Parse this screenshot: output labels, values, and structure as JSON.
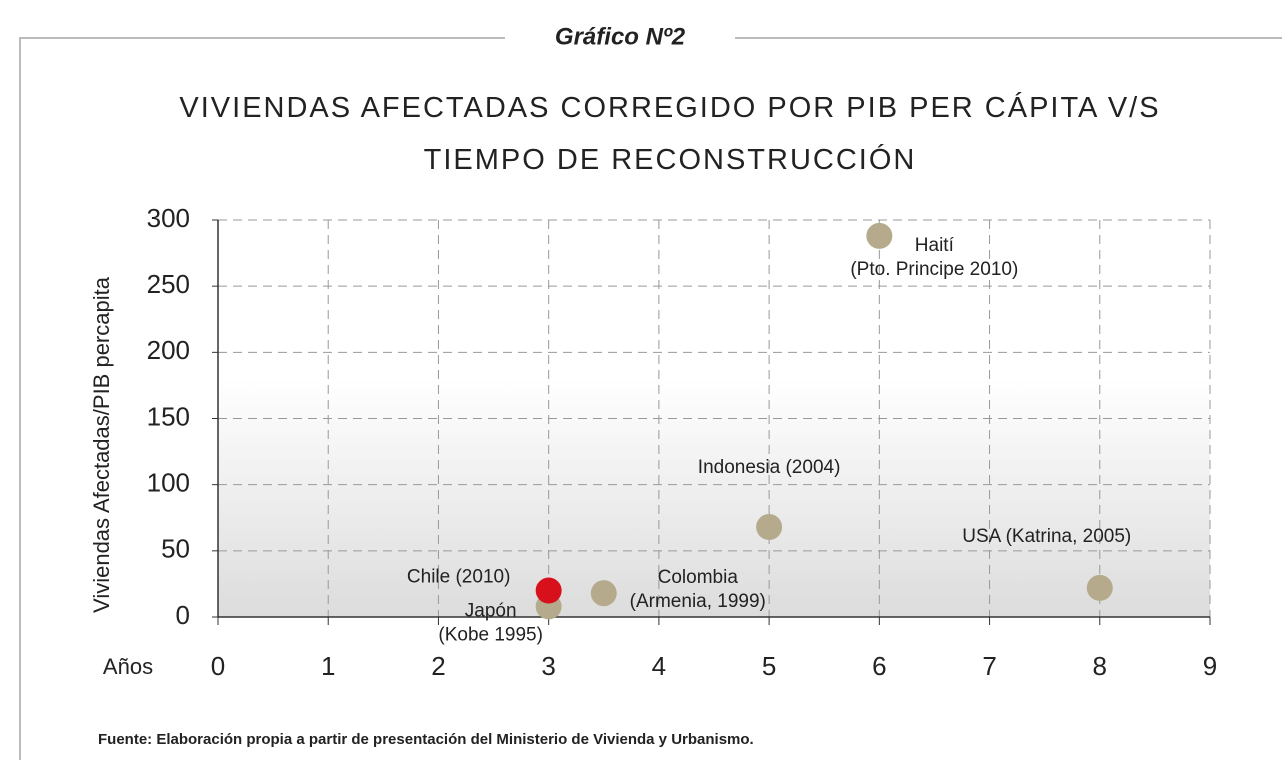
{
  "header": "Gráfico Nº2",
  "chart_data": {
    "type": "scatter",
    "title": "VIVIENDAS AFECTADAS CORREGIDO POR PIB PER CÁPITA V/S TIEMPO DE RECONSTRUCCIÓN",
    "x_label": "Años",
    "y_label": "Viviendas Afectadas/PIB percapita",
    "x": [
      3,
      3,
      3.5,
      5,
      6,
      8
    ],
    "y": [
      8,
      20,
      18,
      68,
      288,
      22
    ],
    "labels": [
      [
        "Japón",
        "(Kobe 1995)"
      ],
      [
        "Chile (2010)"
      ],
      [
        "Colombia",
        "(Armenia, 1999)"
      ],
      [
        "Indonesia (2004)"
      ],
      [
        "Haití",
        "(Pto. Principe 2010)"
      ],
      [
        "USA (Katrina, 2005)"
      ]
    ],
    "colors": [
      "#b5aa8c",
      "#d7101c",
      "#b5aa8c",
      "#b5aa8c",
      "#b5aa8c",
      "#b5aa8c"
    ],
    "xlim": [
      0,
      9
    ],
    "xticks": [
      0,
      1,
      2,
      3,
      4,
      5,
      6,
      7,
      8,
      9
    ],
    "ylim": [
      0,
      300
    ],
    "yticks": [
      0,
      50,
      100,
      150,
      200,
      250,
      300
    ],
    "grid": true
  },
  "source": "Fuente: Elaboración propia a partir de presentación del Ministerio de Vivienda y Urbanismo."
}
